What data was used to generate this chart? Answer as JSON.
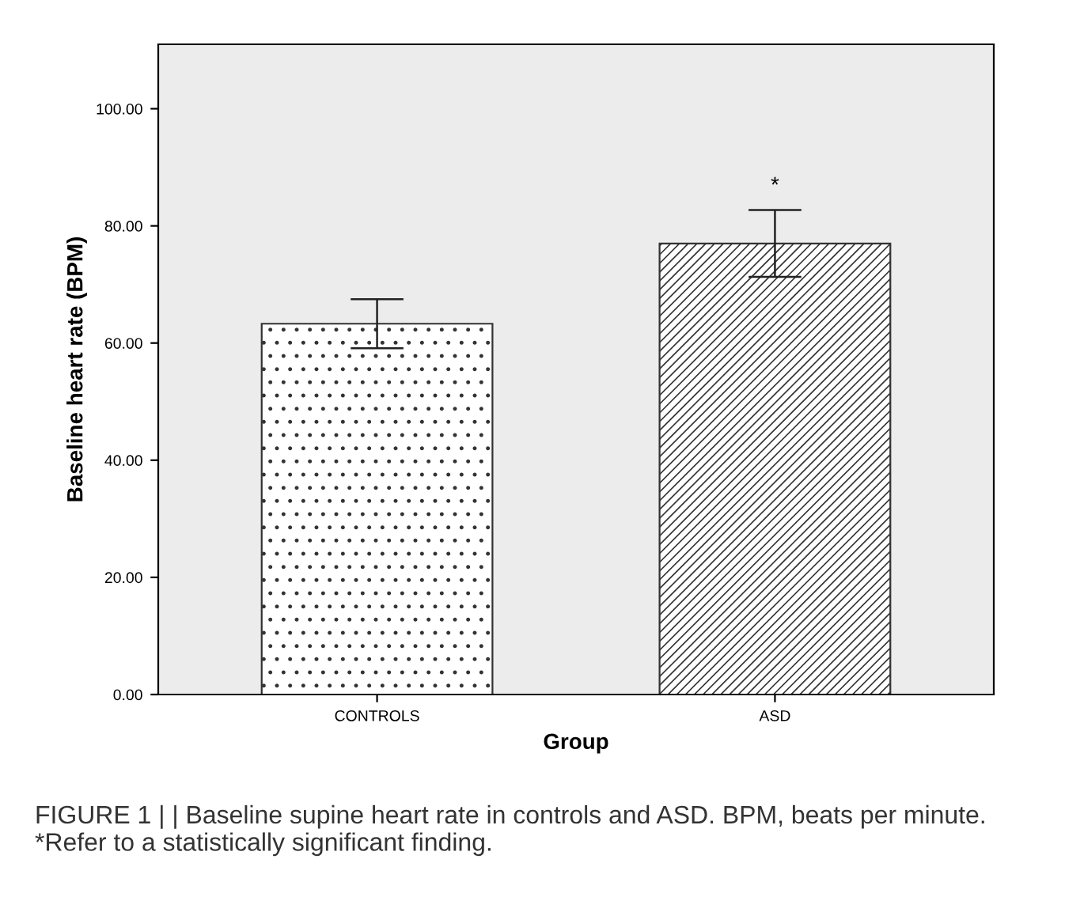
{
  "chart_data": {
    "type": "bar",
    "xlabel": "Group",
    "ylabel": "Baseline heart rate (BPM)",
    "categories": [
      "CONTROLS",
      "ASD"
    ],
    "values": [
      63.3,
      77.0
    ],
    "errors": [
      [
        59.1,
        67.5
      ],
      [
        71.3,
        82.7
      ]
    ],
    "colors": [
      "#ffffff",
      "#ffffff"
    ],
    "ylim": [
      0,
      111
    ],
    "yticks": [
      {
        "value": 0,
        "label": "0.00"
      },
      {
        "value": 20,
        "label": "20.00"
      },
      {
        "value": 40,
        "label": "40.00"
      },
      {
        "value": 60,
        "label": "60.00"
      },
      {
        "value": 80,
        "label": "80.00"
      },
      {
        "value": 100,
        "label": "100.00"
      }
    ],
    "grid": false,
    "annotations": [
      "*",
      "FIGURE 1 | | Baseline supine heart rate in controls and ASD. BPM, beats per minute. *Refer to a statistically significant finding."
    ]
  }
}
